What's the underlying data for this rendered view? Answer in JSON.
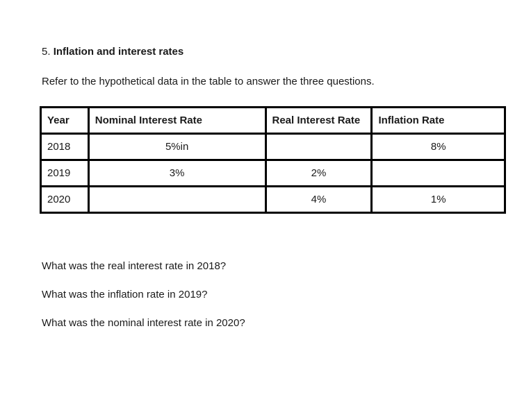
{
  "page": {
    "background": "#ffffff",
    "text_color": "#1a1a1a",
    "table_border_color": "#000000"
  },
  "document": {
    "heading_number": "5.",
    "heading_title": "Inflation and interest rates",
    "intro": "Refer to the hypothetical data in the table to answer the three questions."
  },
  "table": {
    "headers": {
      "year": "Year",
      "nominal": "Nominal Interest Rate",
      "real": "Real Interest Rate",
      "inflation": "Inflation Rate"
    },
    "rows": [
      {
        "year": "2018",
        "nominal": "5%in",
        "real": "",
        "inflation": "8%"
      },
      {
        "year": "2019",
        "nominal": "3%",
        "real": "2%",
        "inflation": ""
      },
      {
        "year": "2020",
        "nominal": "",
        "real": "4%",
        "inflation": "1%"
      }
    ]
  },
  "questions": {
    "q1": "What was the real interest rate in 2018?",
    "q2": "What was the inflation rate in 2019?",
    "q3": "What was the nominal interest rate in 2020?"
  }
}
